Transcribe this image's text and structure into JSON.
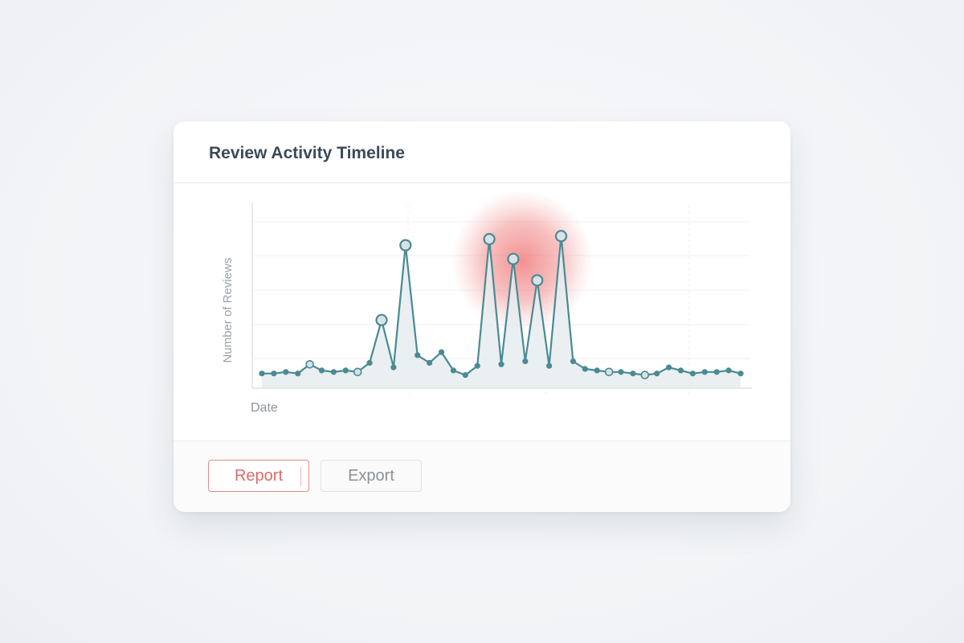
{
  "card": {
    "title": "Review Activity Timeline"
  },
  "actions": {
    "report_label": "Report",
    "export_label": "Export"
  },
  "colors": {
    "line": "#4a8a93",
    "point_fill": "#d9e3e6",
    "area_fill": "#e6ecf0",
    "highlight": "#ef6b6b",
    "report_accent": "#de6a6a"
  },
  "chart_data": {
    "type": "line",
    "title": "",
    "xlabel": "Date",
    "ylabel": "Number of Reviews",
    "ylim": [
      0,
      100
    ],
    "grid": true,
    "x_tick_labels": [],
    "y_tick_labels": [],
    "series": [
      {
        "values": [
          7,
          7,
          8,
          7,
          13,
          9,
          8,
          9,
          8,
          14,
          42,
          11,
          91,
          19,
          14,
          21,
          9,
          6,
          12,
          95,
          13,
          82,
          15,
          68,
          12,
          97,
          15,
          10,
          9,
          8,
          8,
          7,
          6,
          7,
          11,
          9,
          7,
          8,
          8,
          9,
          7
        ],
        "emphasized_indices": [
          4,
          8,
          10,
          12,
          19,
          21,
          23,
          25,
          29,
          32
        ]
      }
    ],
    "highlight_region": {
      "x_index_range": [
        18,
        26
      ],
      "label": ""
    }
  }
}
